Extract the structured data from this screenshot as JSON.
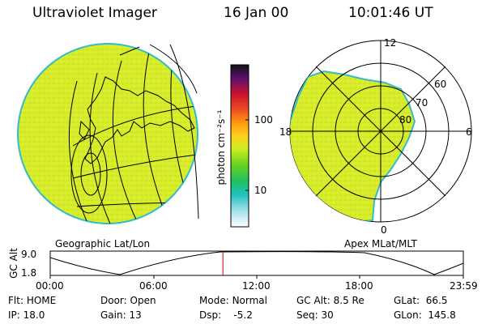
{
  "header": {
    "instrument": "Ultraviolet Imager",
    "date": "16 Jan 00",
    "time": "10:01:46 UT"
  },
  "panels": {
    "left_caption": "Geographic Lat/Lon",
    "right_caption": "Apex MLat/MLT"
  },
  "colorbar": {
    "unit_label": "photon cm⁻²s⁻¹",
    "ticks": [
      "100",
      "10"
    ]
  },
  "polar_plot": {
    "mlt_labels": [
      "12",
      "18",
      "6",
      "0"
    ],
    "mlat_labels": [
      "60",
      "70",
      "80"
    ]
  },
  "altitude_strip": {
    "ylabel": "GC Alt",
    "y_ticks": [
      "9.0",
      "1.8"
    ],
    "time_ticks": [
      "00:00",
      "06:00",
      "12:00",
      "18:00",
      "23:59"
    ],
    "current_time_fraction": 0.418
  },
  "status": {
    "row1": [
      {
        "key": "Flt:",
        "value": "HOME"
      },
      {
        "key": "Door:",
        "value": "Open"
      },
      {
        "key": "Mode:",
        "value": "Normal"
      },
      {
        "key": "GC Alt:",
        "value": "8.5 Re"
      },
      {
        "key": "GLat:",
        "value": "66.5"
      }
    ],
    "row2": [
      {
        "key": "IP:",
        "value": "18.0"
      },
      {
        "key": "Gain:",
        "value": "13"
      },
      {
        "key": "Dsp:",
        "value": "-5.2"
      },
      {
        "key": "Seq:",
        "value": "30"
      },
      {
        "key": "GLon:",
        "value": "145.8"
      }
    ]
  },
  "colors": {
    "image_fill": "#d8ec2a",
    "image_edge": "#33bbcc",
    "marker": "#cc0000"
  }
}
